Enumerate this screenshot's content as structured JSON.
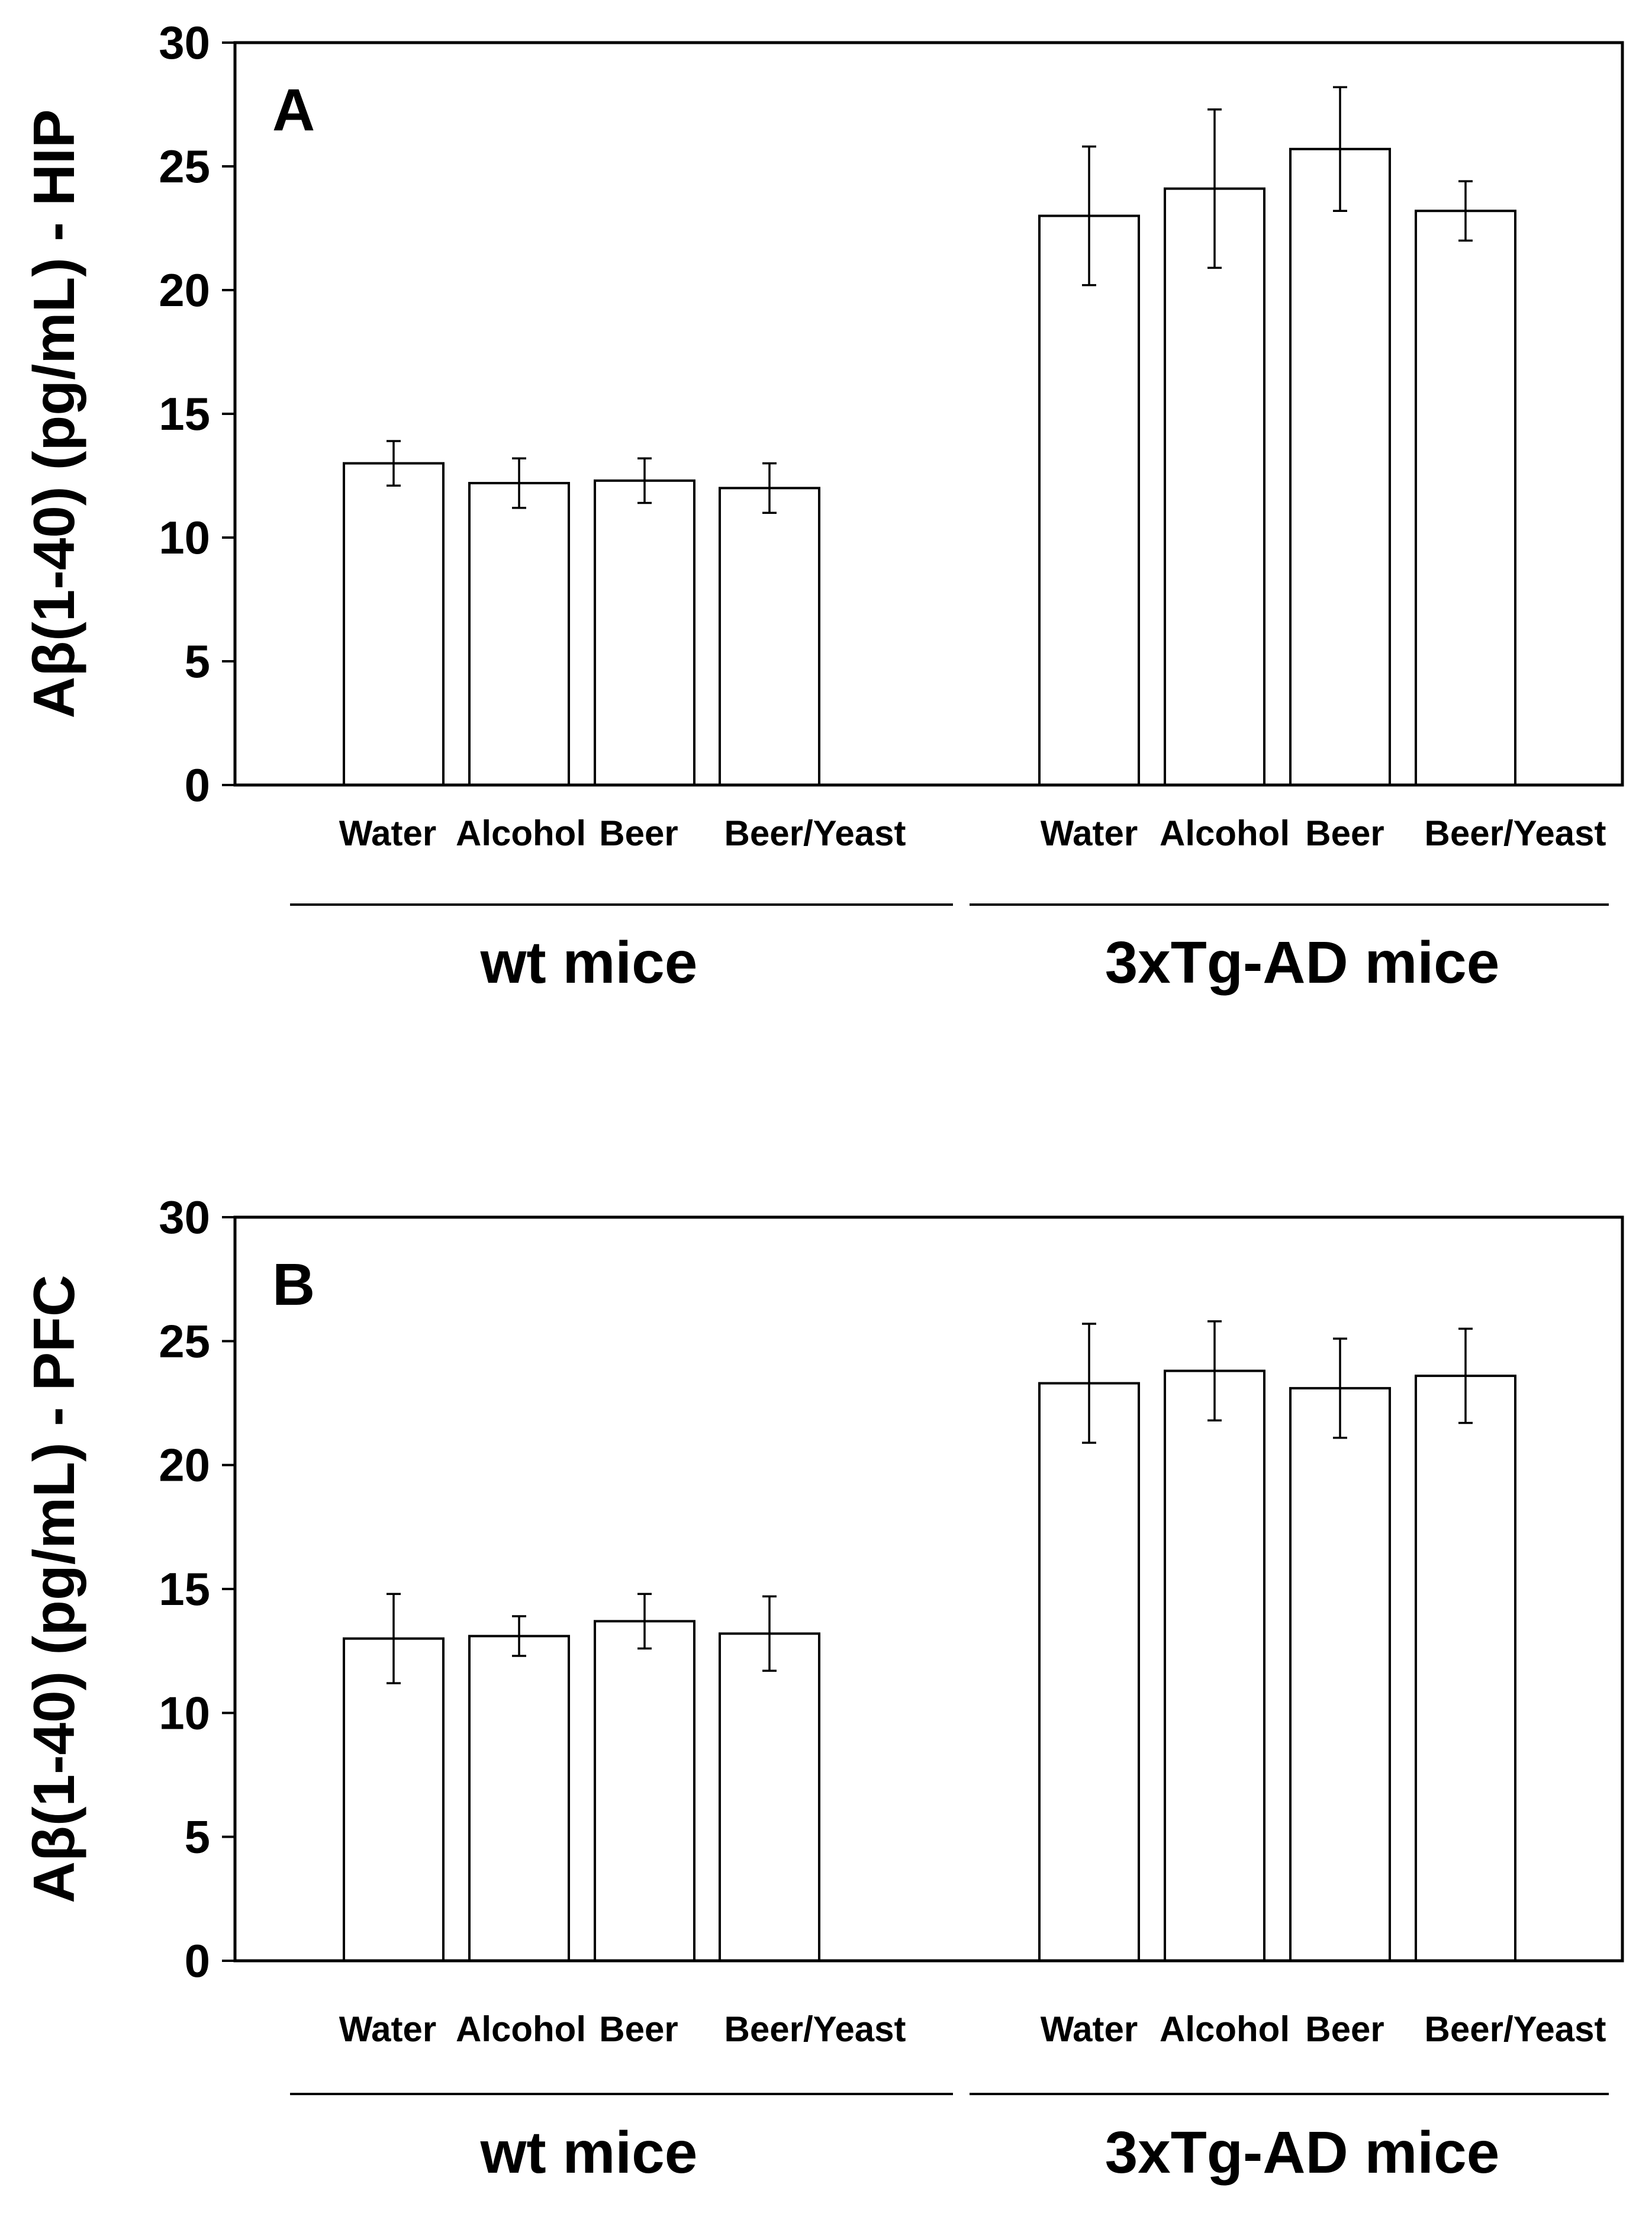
{
  "chart_data": [
    {
      "type": "bar",
      "panel_label": "A",
      "ylabel": "Aβ(1-40) (pg/mL) - HIP",
      "ylim": [
        0,
        30
      ],
      "yticks": [
        0,
        5,
        10,
        15,
        20,
        25,
        30
      ],
      "groups": [
        {
          "name": "wt mice",
          "categories": [
            "Water",
            "Alcohol",
            "Beer",
            "Beer/Yeast"
          ],
          "values": [
            13.0,
            12.2,
            12.3,
            12.0
          ],
          "errors": [
            0.9,
            1.0,
            0.9,
            1.0
          ]
        },
        {
          "name": "3xTg-AD mice",
          "categories": [
            "Water",
            "Alcohol",
            "Beer",
            "Beer/Yeast"
          ],
          "values": [
            23.0,
            24.1,
            25.7,
            23.2
          ],
          "errors": [
            2.8,
            3.2,
            2.5,
            1.2
          ]
        }
      ]
    },
    {
      "type": "bar",
      "panel_label": "B",
      "ylabel": "Aβ(1-40) (pg/mL) -  PFC",
      "ylim": [
        0,
        30
      ],
      "yticks": [
        0,
        5,
        10,
        15,
        20,
        25,
        30
      ],
      "groups": [
        {
          "name": "wt mice",
          "categories": [
            "Water",
            "Alcohol",
            "Beer",
            "Beer/Yeast"
          ],
          "values": [
            13.0,
            13.1,
            13.7,
            13.2
          ],
          "errors": [
            1.8,
            0.8,
            1.1,
            1.5
          ]
        },
        {
          "name": "3xTg-AD mice",
          "categories": [
            "Water",
            "Alcohol",
            "Beer",
            "Beer/Yeast"
          ],
          "values": [
            23.3,
            23.8,
            23.1,
            23.6
          ],
          "errors": [
            2.4,
            2.0,
            2.0,
            1.9
          ]
        }
      ]
    }
  ]
}
